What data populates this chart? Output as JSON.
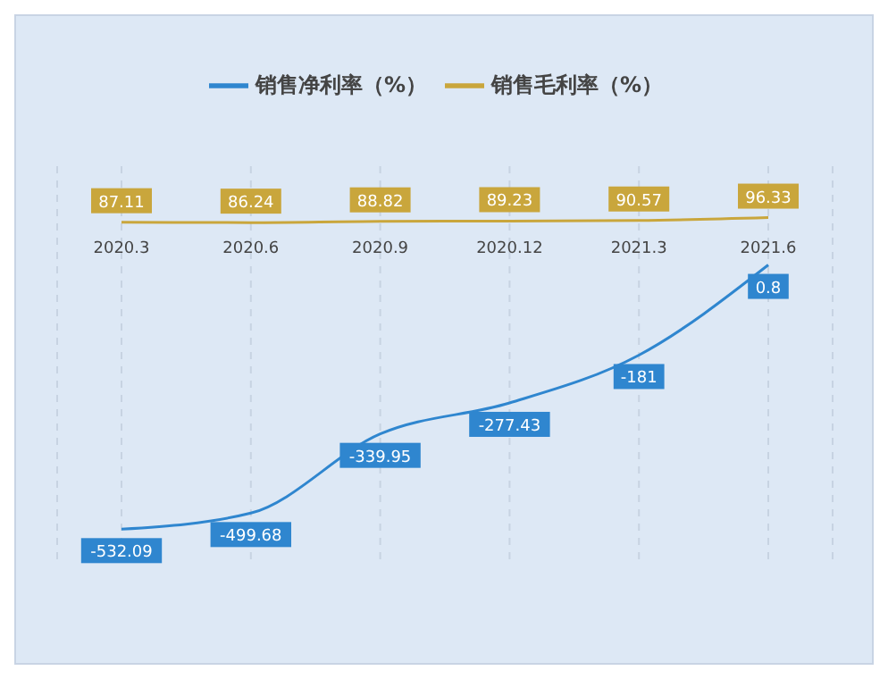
{
  "chart_data": {
    "type": "line",
    "categories": [
      "2020.3",
      "2020.6",
      "2020.9",
      "2020.12",
      "2021.3",
      "2021.6"
    ],
    "series": [
      {
        "name": "销售毛利率（%）",
        "color": "#c9a63c",
        "values": [
          87.11,
          86.24,
          88.82,
          89.23,
          90.57,
          96.33
        ]
      },
      {
        "name": "销售净利率（%）",
        "color": "#2f86cf",
        "values": [
          -532.09,
          -499.68,
          -339.95,
          -277.43,
          -181,
          0.8
        ]
      }
    ],
    "ylim": [
      -600,
      200
    ],
    "tick_labels": "x",
    "data_labels": true,
    "grid": "x",
    "legend": "top",
    "marker": "none",
    "line_style": "solid"
  }
}
